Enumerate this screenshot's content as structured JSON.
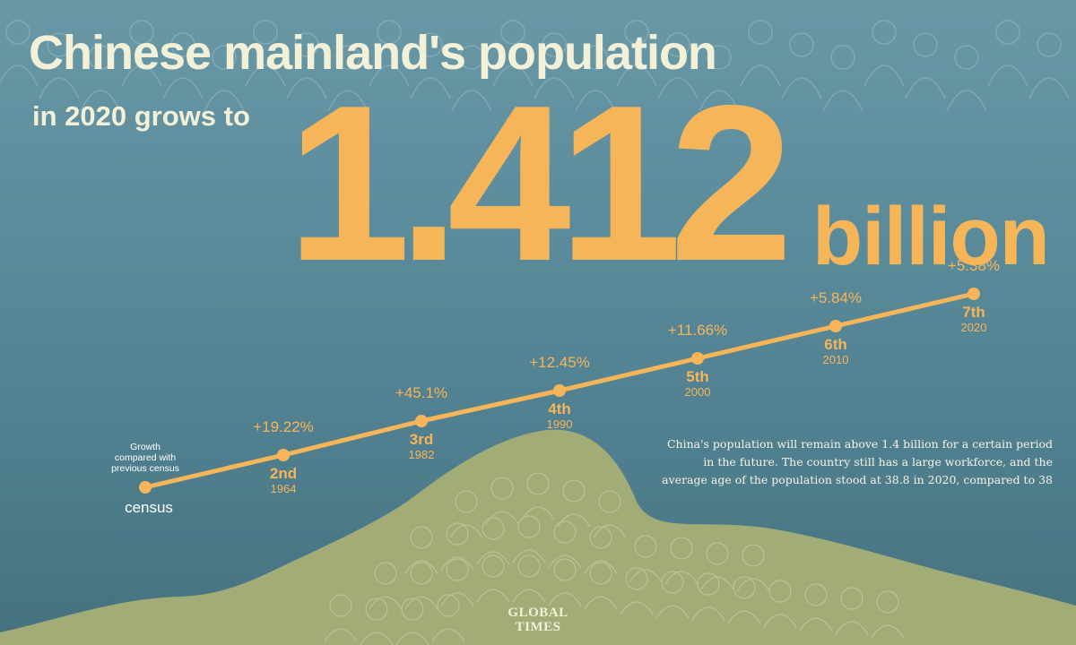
{
  "title": "Chinese mainland's population",
  "subtitle": "in 2020 grows to",
  "headline": {
    "value": "1.412",
    "unit": "billion"
  },
  "note": "China's population will remain above 1.4 billion for a certain period in the future. The country still has a large workforce, and the average age of the population stood at 38.8 in 2020, compared to 38",
  "logo": {
    "line1": "GLOBAL",
    "line2": "TIMES"
  },
  "colors": {
    "accent": "#f7b55a",
    "title": "#f3f0d8",
    "hill": "#a2ac77",
    "background": "#5b8c9b"
  },
  "chart_data": {
    "type": "line",
    "legend_label": "Growth compared with previous census",
    "axis_label": "census",
    "points": [
      {
        "census": "2nd",
        "year": "1964",
        "growth": 19.22,
        "label": "+19.22%"
      },
      {
        "census": "3rd",
        "year": "1982",
        "growth": 45.1,
        "label": "+45.1%"
      },
      {
        "census": "4th",
        "year": "1990",
        "growth": 12.45,
        "label": "+12.45%"
      },
      {
        "census": "5th",
        "year": "2000",
        "growth": 11.66,
        "label": "+11.66%"
      },
      {
        "census": "6th",
        "year": "2010",
        "growth": 5.84,
        "label": "+5.84%"
      },
      {
        "census": "7th",
        "year": "2020",
        "growth": 5.38,
        "label": "+5.38%"
      }
    ]
  }
}
